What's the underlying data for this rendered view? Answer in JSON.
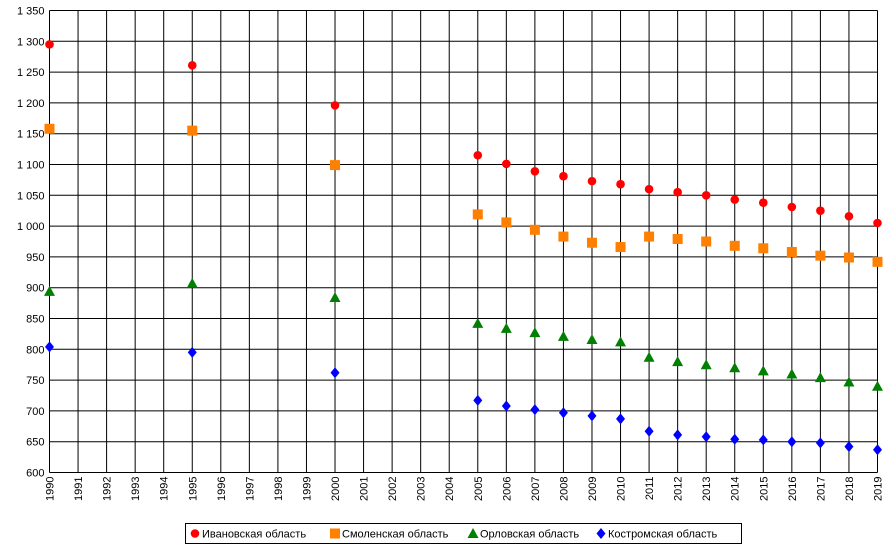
{
  "colors": {
    "background": "#ffffff",
    "grid": "#000000",
    "ivanovo": "#ff0000",
    "smolensk": "#ff8000",
    "orel": "#008000",
    "kostroma": "#0000ff"
  },
  "chart_data": {
    "type": "scatter",
    "title": "",
    "xlabel": "",
    "ylabel": "",
    "x_ticks": [
      "1990",
      "1991",
      "1992",
      "1993",
      "1994",
      "1995",
      "1996",
      "1997",
      "1998",
      "1999",
      "2000",
      "2001",
      "2002",
      "2003",
      "2004",
      "2005",
      "2006",
      "2007",
      "2008",
      "2009",
      "2010",
      "2011",
      "2012",
      "2013",
      "2014",
      "2015",
      "2016",
      "2017",
      "2018",
      "2019"
    ],
    "y_ticks": [
      "600",
      "650",
      "700",
      "750",
      "800",
      "850",
      "900",
      "950",
      "1 000",
      "1 050",
      "1 100",
      "1 150",
      "1 200",
      "1 250",
      "1 300",
      "1 350"
    ],
    "xlim": [
      1990,
      2019
    ],
    "ylim": [
      600,
      1350
    ],
    "grid": true,
    "legend_placement": "bottom",
    "series": [
      {
        "name": "Ивановская область",
        "marker": "circle",
        "color": "#ff0000",
        "x": [
          1990,
          1995,
          2000,
          2005,
          2006,
          2007,
          2008,
          2009,
          2010,
          2011,
          2012,
          2013,
          2014,
          2015,
          2016,
          2017,
          2018,
          2019
        ],
        "y": [
          1295,
          1261,
          1196,
          1115,
          1101,
          1089,
          1081,
          1073,
          1068,
          1060,
          1055,
          1050,
          1043,
          1038,
          1031,
          1025,
          1016,
          1005
        ]
      },
      {
        "name": "Смоленская область",
        "marker": "square",
        "color": "#ff8000",
        "x": [
          1990,
          1995,
          2000,
          2005,
          2006,
          2007,
          2008,
          2009,
          2010,
          2011,
          2012,
          2013,
          2014,
          2015,
          2016,
          2017,
          2018,
          2019
        ],
        "y": [
          1158,
          1155,
          1099,
          1019,
          1006,
          994,
          983,
          973,
          966,
          983,
          979,
          975,
          968,
          964,
          958,
          952,
          949,
          942
        ]
      },
      {
        "name": "Орловская область",
        "marker": "triangle",
        "color": "#008000",
        "x": [
          1990,
          1995,
          2000,
          2005,
          2006,
          2007,
          2008,
          2009,
          2010,
          2011,
          2012,
          2013,
          2014,
          2015,
          2016,
          2017,
          2018,
          2019
        ],
        "y": [
          894,
          907,
          884,
          842,
          834,
          827,
          821,
          816,
          812,
          787,
          780,
          775,
          770,
          765,
          760,
          754,
          747,
          740
        ]
      },
      {
        "name": "Костромская область",
        "marker": "diamond",
        "color": "#0000ff",
        "x": [
          1990,
          1995,
          2000,
          2005,
          2006,
          2007,
          2008,
          2009,
          2010,
          2011,
          2012,
          2013,
          2014,
          2015,
          2016,
          2017,
          2018,
          2019
        ],
        "y": [
          804,
          795,
          762,
          717,
          708,
          702,
          697,
          692,
          687,
          667,
          661,
          658,
          654,
          653,
          650,
          648,
          642,
          637
        ]
      }
    ]
  }
}
